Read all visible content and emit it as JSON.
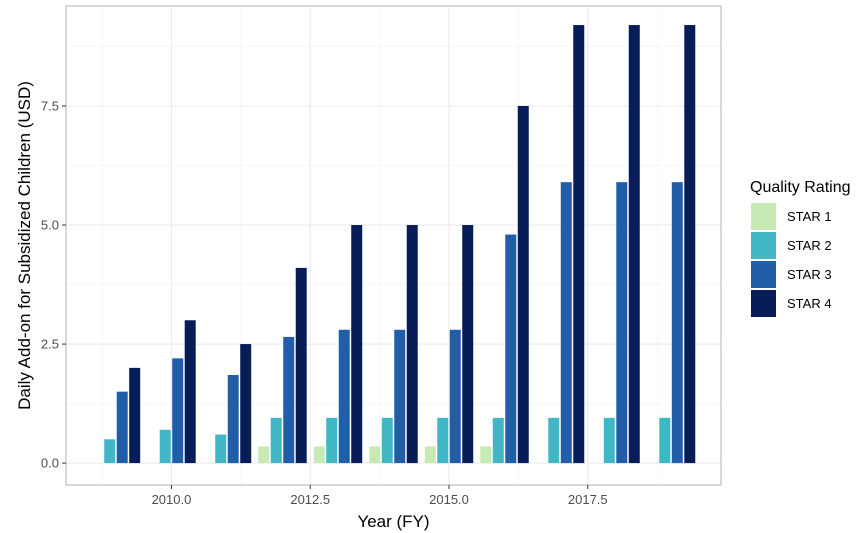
{
  "chart_data": {
    "type": "bar",
    "title": "",
    "xlabel": "Year (FY)",
    "ylabel": "Daily Add-on for Subsidized Children (USD)",
    "x": [
      2009,
      2010,
      2011,
      2012,
      2013,
      2014,
      2015,
      2016,
      2017,
      2018,
      2019
    ],
    "xlim": [
      2008.1,
      2019.9
    ],
    "ylim": [
      -0.46,
      9.6
    ],
    "x_ticks": [
      {
        "value": 2010.0,
        "label": "2010.0"
      },
      {
        "value": 2012.5,
        "label": "2012.5"
      },
      {
        "value": 2015.0,
        "label": "2015.0"
      },
      {
        "value": 2017.5,
        "label": "2017.5"
      }
    ],
    "y_ticks": [
      {
        "value": 0.0,
        "label": "0.0"
      },
      {
        "value": 2.5,
        "label": "2.5"
      },
      {
        "value": 5.0,
        "label": "5.0"
      },
      {
        "value": 7.5,
        "label": "7.5"
      }
    ],
    "legend_title": "Quality Rating",
    "legend_position": "right",
    "grid": true,
    "series": [
      {
        "name": "STAR 1",
        "color": "#c7e9b4",
        "values": [
          0,
          0,
          0,
          0.35,
          0.35,
          0.35,
          0.35,
          0.35,
          0,
          0,
          0
        ]
      },
      {
        "name": "STAR 2",
        "color": "#41b6c4",
        "values": [
          0.5,
          0.7,
          0.6,
          0.95,
          0.95,
          0.95,
          0.95,
          0.95,
          0.95,
          0.95,
          0.95
        ]
      },
      {
        "name": "STAR 3",
        "color": "#225ea8",
        "values": [
          1.5,
          2.2,
          1.85,
          2.65,
          2.8,
          2.8,
          2.8,
          4.8,
          5.9,
          5.9,
          5.9
        ]
      },
      {
        "name": "STAR 4",
        "color": "#081d58",
        "values": [
          2.0,
          3.0,
          2.5,
          4.1,
          5.0,
          5.0,
          5.0,
          7.5,
          9.2,
          9.2,
          9.2
        ]
      }
    ]
  }
}
